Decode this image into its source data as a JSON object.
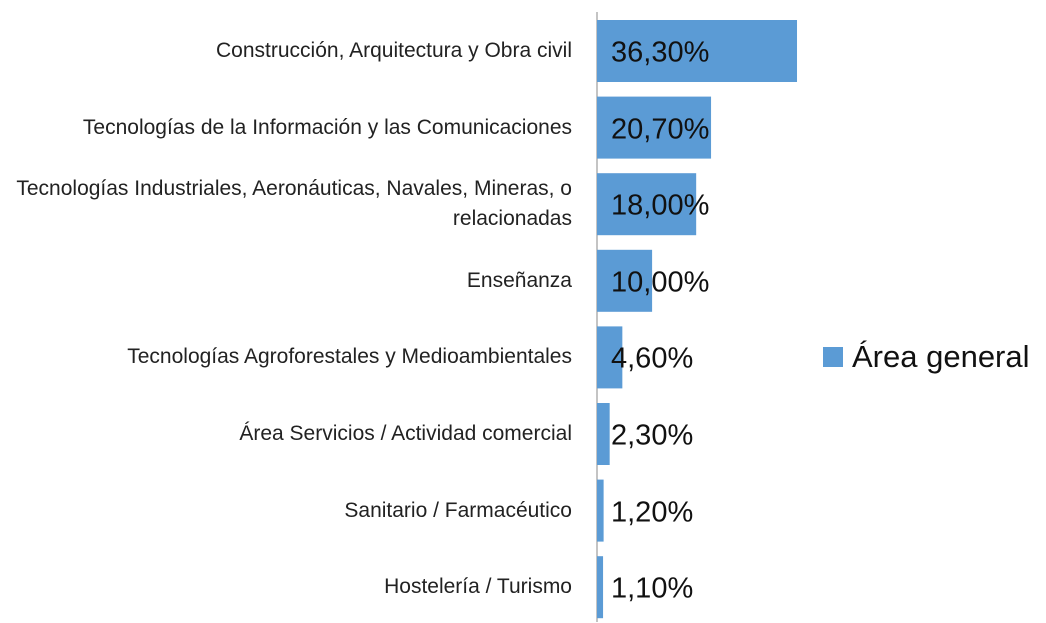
{
  "chart_data": {
    "type": "bar",
    "orientation": "horizontal",
    "categories": [
      "Construcción, Arquitectura y Obra civil",
      "Tecnologías de la Información y las Comunicaciones",
      "Tecnologías Industriales, Aeronáuticas, Navales, Mineras, o relacionadas",
      "Enseñanza",
      "Tecnologías Agroforestales y Medioambientales",
      "Área Servicios / Actividad comercial",
      "Sanitario / Farmacéutico",
      "Hostelería / Turismo"
    ],
    "series": [
      {
        "name": "Área general",
        "color": "#5b9bd5",
        "values": [
          36.3,
          20.7,
          18,
          10,
          4.6,
          2.3,
          1.2,
          1.1
        ],
        "value_labels": [
          "36,30%",
          "20,70%",
          "18,00%",
          "10,00%",
          "4,60%",
          "2,30%",
          "1,20%",
          "1,10%"
        ]
      }
    ],
    "xlim": [
      0,
      40
    ],
    "legend": "right"
  }
}
